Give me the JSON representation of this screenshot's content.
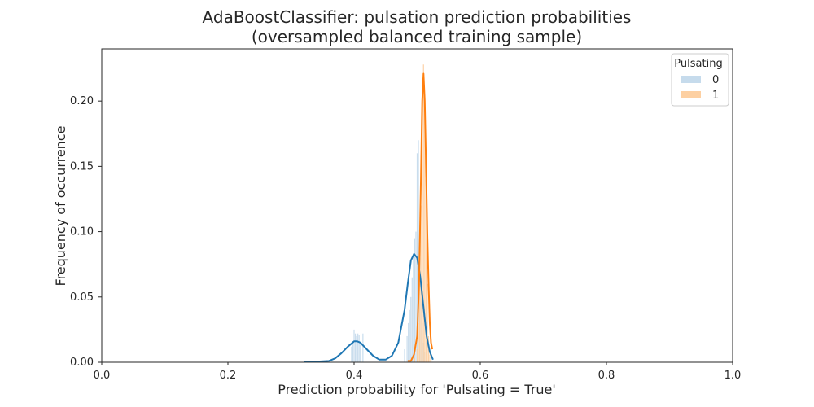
{
  "chart_data": {
    "type": "histogram+kde",
    "title": "AdaBoostClassifier: pulsation prediction probabilities",
    "subtitle": "(oversampled balanced training sample)",
    "xlabel": "Prediction probability for 'Pulsating = True'",
    "ylabel": "Frequency of occurrence",
    "xlim": [
      0.0,
      1.0
    ],
    "ylim": [
      0.0,
      0.24
    ],
    "x_ticks": [
      "0.0",
      "0.2",
      "0.4",
      "0.6",
      "0.8",
      "1.0"
    ],
    "x_tick_values": [
      0.0,
      0.2,
      0.4,
      0.6,
      0.8,
      1.0
    ],
    "y_ticks": [
      "0.00",
      "0.05",
      "0.10",
      "0.15",
      "0.20"
    ],
    "y_tick_values": [
      0.0,
      0.05,
      0.1,
      0.15,
      0.2
    ],
    "grid": false,
    "legend": {
      "title": "Pulsating",
      "placement": "top-right"
    },
    "series": [
      {
        "name": "0",
        "line_color": "#1f77b4",
        "fill_color": "#c6dbec",
        "histogram": {
          "x": [
            0.396,
            0.398,
            0.4,
            0.402,
            0.404,
            0.406,
            0.408,
            0.41,
            0.414,
            0.48,
            0.484,
            0.486,
            0.488,
            0.49,
            0.492,
            0.494,
            0.496,
            0.498,
            0.5,
            0.502,
            0.504,
            0.506,
            0.508,
            0.51,
            0.512
          ],
          "values": [
            0.012,
            0.016,
            0.025,
            0.022,
            0.02,
            0.022,
            0.021,
            0.015,
            0.022,
            0.01,
            0.02,
            0.03,
            0.04,
            0.05,
            0.065,
            0.08,
            0.095,
            0.1,
            0.16,
            0.17,
            0.08,
            0.05,
            0.03,
            0.015,
            0.008
          ]
        },
        "kde": {
          "x": [
            0.32,
            0.34,
            0.36,
            0.37,
            0.38,
            0.39,
            0.4,
            0.405,
            0.41,
            0.42,
            0.43,
            0.44,
            0.45,
            0.46,
            0.47,
            0.48,
            0.485,
            0.49,
            0.495,
            0.5,
            0.505,
            0.51,
            0.515,
            0.52,
            0.525
          ],
          "values": [
            0.0005,
            0.0005,
            0.001,
            0.003,
            0.007,
            0.012,
            0.016,
            0.016,
            0.015,
            0.01,
            0.005,
            0.002,
            0.002,
            0.005,
            0.015,
            0.04,
            0.06,
            0.078,
            0.083,
            0.08,
            0.065,
            0.042,
            0.02,
            0.008,
            0.002
          ]
        }
      },
      {
        "name": "1",
        "line_color": "#ff7f0e",
        "fill_color": "#fdd0a2",
        "histogram": {
          "x": [
            0.496,
            0.5,
            0.502,
            0.504,
            0.506,
            0.508,
            0.51,
            0.512,
            0.514,
            0.516,
            0.518,
            0.52,
            0.522
          ],
          "values": [
            0.003,
            0.01,
            0.03,
            0.06,
            0.12,
            0.2,
            0.228,
            0.2,
            0.14,
            0.06,
            0.02,
            0.006,
            0.002
          ]
        },
        "kde": {
          "x": [
            0.485,
            0.49,
            0.495,
            0.5,
            0.503,
            0.506,
            0.508,
            0.51,
            0.512,
            0.514,
            0.516,
            0.518,
            0.52,
            0.522,
            0.524
          ],
          "values": [
            0.001,
            0.001,
            0.006,
            0.02,
            0.06,
            0.14,
            0.2,
            0.221,
            0.2,
            0.15,
            0.1,
            0.06,
            0.03,
            0.015,
            0.01
          ]
        }
      }
    ]
  }
}
